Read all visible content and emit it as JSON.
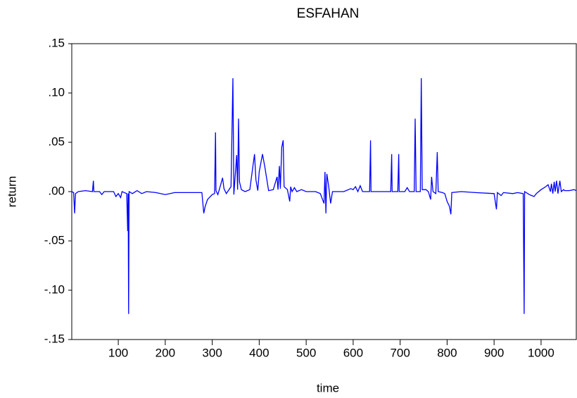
{
  "chart_data": {
    "type": "line",
    "title": "ESFAHAN",
    "x_label": "time",
    "y_label": "return",
    "xlim": [
      1,
      1075
    ],
    "xticks": [
      100,
      200,
      300,
      400,
      500,
      600,
      700,
      800,
      900,
      1000
    ],
    "ylim": [
      -0.15,
      0.15
    ],
    "yticks": [
      {
        "value": -0.15,
        "label": "-.15"
      },
      {
        "value": -0.1,
        "label": "-.10"
      },
      {
        "value": -0.05,
        "label": "-.05"
      },
      {
        "value": 0,
        "label": ".00"
      },
      {
        "value": 0.05,
        "label": ".05"
      },
      {
        "value": 0.1,
        "label": ".10"
      },
      {
        "value": 0.15,
        "label": ".15"
      }
    ],
    "series": [
      {
        "name": "return",
        "color": "#0000ff",
        "x": [
          1,
          5,
          7,
          9,
          15,
          30,
          45,
          47,
          48,
          60,
          65,
          70,
          90,
          95,
          100,
          105,
          108,
          118,
          120,
          121,
          122,
          123,
          130,
          140,
          150,
          160,
          180,
          200,
          220,
          270,
          278,
          282,
          285,
          290,
          300,
          305,
          307,
          308,
          312,
          318,
          322,
          325,
          330,
          340,
          344,
          346,
          352,
          354,
          356,
          358,
          362,
          370,
          380,
          385,
          390,
          393,
          397,
          400,
          407,
          412,
          420,
          430,
          438,
          440,
          443,
          445,
          448,
          451,
          453,
          460,
          465,
          467,
          470,
          475,
          480,
          490,
          500,
          520,
          530,
          538,
          540,
          542,
          544,
          548,
          552,
          556,
          580,
          595,
          600,
          605,
          610,
          615,
          620,
          635,
          637,
          638,
          660,
          680,
          682,
          683,
          695,
          697,
          698,
          710,
          715,
          720,
          730,
          732,
          734,
          743,
          745,
          747,
          755,
          760,
          765,
          767,
          770,
          776,
          779,
          781,
          790,
          795,
          800,
          805,
          808,
          810,
          830,
          860,
          900,
          905,
          907,
          915,
          920,
          940,
          950,
          962,
          964,
          965,
          975,
          980,
          985,
          990,
          1000,
          1010,
          1015,
          1020,
          1022,
          1025,
          1028,
          1030,
          1033,
          1036,
          1040,
          1043,
          1048,
          1050,
          1060,
          1070,
          1075
        ],
        "values": [
          0,
          -0.001,
          -0.022,
          -0.002,
          0,
          0.001,
          0,
          0.011,
          0,
          0,
          -0.003,
          0,
          0,
          -0.005,
          -0.002,
          -0.006,
          0,
          -0.002,
          -0.04,
          -0.002,
          -0.124,
          0,
          -0.002,
          0.001,
          -0.002,
          0,
          -0.001,
          -0.003,
          -0.001,
          -0.001,
          -0.001,
          -0.022,
          -0.015,
          -0.008,
          -0.003,
          -0.002,
          0.06,
          0.001,
          -0.003,
          0.007,
          0.014,
          0.003,
          -0.002,
          0.005,
          0.115,
          -0.003,
          0.037,
          0.002,
          0.074,
          0.01,
          0.002,
          0,
          0.002,
          0.02,
          0.038,
          0.012,
          0.001,
          0.02,
          0.038,
          0.025,
          0.001,
          0.002,
          0.015,
          0.002,
          0.026,
          0.003,
          0.045,
          0.052,
          0.005,
          0.002,
          -0.01,
          0.005,
          0,
          0.004,
          0,
          0.002,
          0,
          0,
          -0.002,
          -0.012,
          0.02,
          -0.022,
          0.018,
          0.005,
          -0.012,
          0,
          0,
          0.003,
          0.002,
          0.005,
          0,
          0.006,
          0,
          0,
          0.052,
          0,
          0,
          0,
          0.038,
          0,
          0,
          0.038,
          0,
          0,
          0.004,
          0,
          0,
          0.074,
          0,
          0,
          0.115,
          0.002,
          0.002,
          0,
          -0.008,
          0.015,
          0,
          -0.002,
          0.04,
          0,
          -0.001,
          -0.002,
          -0.01,
          -0.015,
          -0.023,
          -0.001,
          0,
          -0.001,
          -0.002,
          -0.018,
          -0.001,
          -0.004,
          -0.001,
          -0.002,
          -0.001,
          -0.002,
          -0.124,
          0,
          -0.003,
          -0.004,
          -0.005,
          -0.002,
          0.002,
          0.005,
          0.007,
          0,
          0.008,
          -0.002,
          0.01,
          0,
          0.011,
          -0.002,
          0.011,
          0,
          0.002,
          0.001,
          0.001,
          0.002,
          0.001
        ]
      }
    ]
  }
}
